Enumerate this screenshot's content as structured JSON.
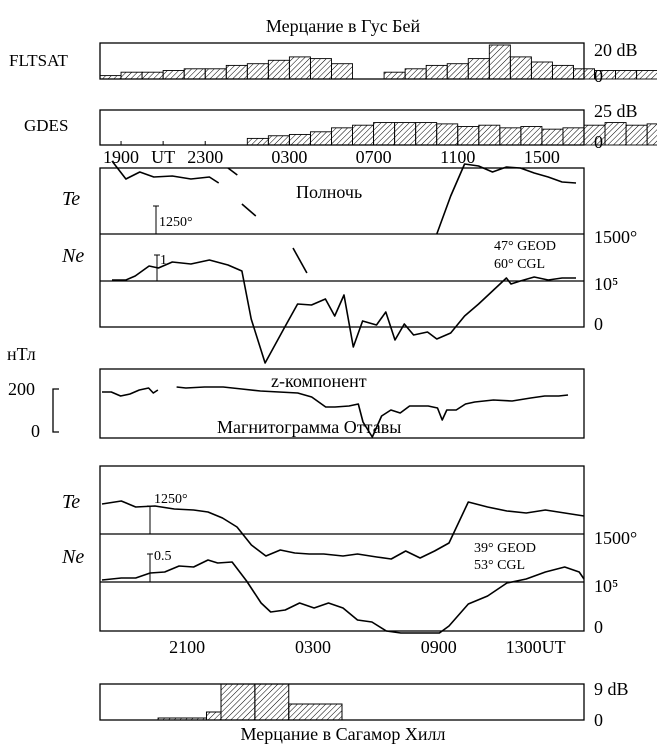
{
  "chart_data": [
    {
      "id": "goose_bay_scint",
      "type": "bar",
      "title": "Мерцание в Гус Бей",
      "rows": [
        {
          "label": "FLTSAT",
          "scale_top": "20 dB",
          "scale_zero": "0",
          "ymax": 20,
          "bins": [
            {
              "from": 36,
              "to": 38,
              "v": 2
            },
            {
              "from": 38,
              "to": 40,
              "v": 4
            },
            {
              "from": 40,
              "to": 42,
              "v": 4
            },
            {
              "from": 42,
              "to": 44,
              "v": 5
            },
            {
              "from": 44,
              "to": 46,
              "v": 6
            },
            {
              "from": 46,
              "to": 48,
              "v": 6
            },
            {
              "from": 48,
              "to": 50,
              "v": 8
            },
            {
              "from": 50,
              "to": 52,
              "v": 9
            },
            {
              "from": 52,
              "to": 54,
              "v": 11
            },
            {
              "from": 54,
              "to": 56,
              "v": 13
            },
            {
              "from": 56,
              "to": 58,
              "v": 12
            },
            {
              "from": 58,
              "to": 60,
              "v": 9
            },
            {
              "from": 63,
              "to": 65,
              "v": 4
            },
            {
              "from": 65,
              "to": 67,
              "v": 6
            },
            {
              "from": 67,
              "to": 69,
              "v": 8
            },
            {
              "from": 69,
              "to": 71,
              "v": 9
            },
            {
              "from": 71,
              "to": 73,
              "v": 12
            },
            {
              "from": 73,
              "to": 75,
              "v": 20
            },
            {
              "from": 75,
              "to": 77,
              "v": 13
            },
            {
              "from": 77,
              "to": 79,
              "v": 10
            },
            {
              "from": 79,
              "to": 81,
              "v": 8
            },
            {
              "from": 81,
              "to": 83,
              "v": 6
            },
            {
              "from": 83,
              "to": 85,
              "v": 5
            },
            {
              "from": 85,
              "to": 87,
              "v": 5
            },
            {
              "from": 87,
              "to": 89,
              "v": 5
            },
            {
              "from": 89,
              "to": 91,
              "v": 4
            }
          ]
        },
        {
          "label": "GDES",
          "scale_top": "25 dB",
          "scale_zero": "0",
          "ymax": 25,
          "bins": [
            {
              "from": 50,
              "to": 52,
              "v": 5
            },
            {
              "from": 52,
              "to": 54,
              "v": 7
            },
            {
              "from": 54,
              "to": 56,
              "v": 8
            },
            {
              "from": 56,
              "to": 58,
              "v": 10
            },
            {
              "from": 58,
              "to": 60,
              "v": 13
            },
            {
              "from": 60,
              "to": 62,
              "v": 15
            },
            {
              "from": 62,
              "to": 64,
              "v": 17
            },
            {
              "from": 64,
              "to": 66,
              "v": 17
            },
            {
              "from": 66,
              "to": 68,
              "v": 17
            },
            {
              "from": 68,
              "to": 70,
              "v": 16
            },
            {
              "from": 70,
              "to": 72,
              "v": 14
            },
            {
              "from": 72,
              "to": 74,
              "v": 15
            },
            {
              "from": 74,
              "to": 76,
              "v": 13
            },
            {
              "from": 76,
              "to": 78,
              "v": 14
            },
            {
              "from": 78,
              "to": 80,
              "v": 12
            },
            {
              "from": 80,
              "to": 82,
              "v": 13
            },
            {
              "from": 82,
              "to": 84,
              "v": 15
            },
            {
              "from": 84,
              "to": 86,
              "v": 17
            },
            {
              "from": 86,
              "to": 88,
              "v": 15
            },
            {
              "from": 88,
              "to": 90,
              "v": 16
            },
            {
              "from": 90,
              "to": 92,
              "v": 14
            },
            {
              "from": 92,
              "to": 94,
              "v": 13
            },
            {
              "from": 94,
              "to": 96,
              "v": 11
            },
            {
              "from": 96,
              "to": 98,
              "v": 10
            },
            {
              "from": 98,
              "to": 100,
              "v": 9
            },
            {
              "from": 100,
              "to": 102,
              "v": 10
            },
            {
              "from": 102,
              "to": 104,
              "v": 8
            },
            {
              "from": 104,
              "to": 106,
              "v": 6
            },
            {
              "from": 106,
              "to": 108,
              "v": 5
            },
            {
              "from": 108,
              "to": 110,
              "v": 3
            }
          ]
        }
      ],
      "time_ticks": [
        {
          "hour": 19,
          "label": "1900"
        },
        {
          "hour": 21,
          "label": "UT"
        },
        {
          "hour": 23,
          "label": "2300"
        },
        {
          "hour": 27,
          "label": "0300"
        },
        {
          "hour": 31,
          "label": "0700"
        },
        {
          "hour": 35,
          "label": "1100"
        },
        {
          "hour": 39,
          "label": "1500"
        }
      ]
    },
    {
      "id": "goose_bay_profiles",
      "type": "line",
      "annotation": "Полночь",
      "site": [
        "47° GEOD",
        "60° CGL"
      ],
      "te": {
        "label": "Te",
        "scale_label": "1250°",
        "base_label": "1500°",
        "segments": [
          [
            [
              0.0,
              73
            ],
            [
              0.03,
              55
            ],
            [
              0.06,
              62
            ],
            [
              0.09,
              57
            ],
            [
              0.13,
              58
            ],
            [
              0.17,
              55
            ],
            [
              0.21,
              57
            ],
            [
              0.23,
              51
            ]
          ],
          [
            [
              0.25,
              66
            ],
            [
              0.27,
              59
            ]
          ],
          [
            [
              0.28,
              30
            ],
            [
              0.31,
              18
            ]
          ],
          [
            [
              0.39,
              -14
            ],
            [
              0.42,
              -39
            ]
          ],
          [
            [
              0.7,
              0
            ],
            [
              0.73,
              38
            ],
            [
              0.76,
              70
            ],
            [
              0.79,
              68
            ],
            [
              0.82,
              62
            ],
            [
              0.85,
              67
            ],
            [
              0.88,
              66
            ],
            [
              0.91,
              61
            ],
            [
              0.94,
              57
            ],
            [
              0.97,
              52
            ],
            [
              1.0,
              51
            ]
          ]
        ]
      },
      "ne": {
        "label": "Ne",
        "scale_label": "1",
        "base_label": "10⁵",
        "zero_label": "0",
        "points": [
          [
            0.0,
            1
          ],
          [
            0.03,
            1
          ],
          [
            0.05,
            5
          ],
          [
            0.08,
            15
          ],
          [
            0.1,
            13
          ],
          [
            0.13,
            19
          ],
          [
            0.17,
            17
          ],
          [
            0.21,
            21
          ],
          [
            0.25,
            16
          ],
          [
            0.28,
            10
          ],
          [
            0.3,
            -38
          ],
          [
            0.33,
            -82
          ],
          [
            0.37,
            -48
          ],
          [
            0.4,
            -23
          ],
          [
            0.43,
            -24
          ],
          [
            0.46,
            -18
          ],
          [
            0.48,
            -35
          ],
          [
            0.5,
            -14
          ],
          [
            0.52,
            -66
          ],
          [
            0.54,
            -40
          ],
          [
            0.57,
            -44
          ],
          [
            0.59,
            -31
          ],
          [
            0.61,
            -59
          ],
          [
            0.63,
            -43
          ],
          [
            0.65,
            -54
          ],
          [
            0.68,
            -51
          ],
          [
            0.7,
            -58
          ],
          [
            0.73,
            -52
          ],
          [
            0.76,
            -35
          ],
          [
            0.79,
            -23
          ],
          [
            0.82,
            -10
          ],
          [
            0.85,
            3
          ],
          [
            0.86,
            -3
          ],
          [
            0.88,
            0
          ],
          [
            0.91,
            4
          ],
          [
            0.94,
            1
          ],
          [
            0.97,
            3
          ],
          [
            1.0,
            3
          ]
        ]
      }
    },
    {
      "id": "ottawa_magnetogram",
      "type": "line",
      "unit_label": "нТл",
      "title": "z-компонент",
      "caption": "Магнитограмма Оттавы",
      "scale_top": "200",
      "scale_zero": "0",
      "segments": [
        [
          [
            0.0,
            0
          ],
          [
            0.02,
            0
          ],
          [
            0.04,
            -4
          ],
          [
            0.06,
            -2
          ],
          [
            0.08,
            2
          ],
          [
            0.1,
            4
          ],
          [
            0.11,
            -1
          ],
          [
            0.12,
            2
          ]
        ],
        [
          [
            0.16,
            5
          ],
          [
            0.18,
            4
          ],
          [
            0.22,
            5
          ],
          [
            0.26,
            5
          ],
          [
            0.3,
            3
          ],
          [
            0.34,
            1
          ],
          [
            0.38,
            0
          ],
          [
            0.42,
            -1
          ],
          [
            0.45,
            -5
          ],
          [
            0.48,
            -15
          ],
          [
            0.5,
            -15
          ],
          [
            0.53,
            -14
          ],
          [
            0.55,
            -12
          ],
          [
            0.56,
            -30
          ],
          [
            0.58,
            -45
          ],
          [
            0.6,
            -24
          ],
          [
            0.62,
            -18
          ],
          [
            0.64,
            -21
          ],
          [
            0.66,
            -14
          ],
          [
            0.7,
            -14
          ],
          [
            0.72,
            -16
          ],
          [
            0.73,
            -28
          ],
          [
            0.74,
            -18
          ],
          [
            0.76,
            -18
          ],
          [
            0.78,
            -12
          ],
          [
            0.8,
            -10
          ],
          [
            0.84,
            -8
          ],
          [
            0.88,
            -9
          ],
          [
            0.92,
            -6
          ],
          [
            0.95,
            -4
          ],
          [
            0.98,
            -4
          ],
          [
            1.0,
            -3
          ]
        ]
      ]
    },
    {
      "id": "sagamore_profiles",
      "type": "line",
      "site": [
        "39° GEOD",
        "53° CGL"
      ],
      "time_ticks": [
        {
          "frac": 0.18,
          "label": "2100"
        },
        {
          "frac": 0.44,
          "label": "0300"
        },
        {
          "frac": 0.7,
          "label": "0900"
        },
        {
          "frac": 0.9,
          "label": "1300UT"
        }
      ],
      "te": {
        "label": "Te",
        "scale_label": "1250°",
        "base_label": "1500°",
        "points": [
          [
            0.0,
            30
          ],
          [
            0.04,
            33
          ],
          [
            0.07,
            27
          ],
          [
            0.11,
            28
          ],
          [
            0.15,
            25
          ],
          [
            0.19,
            24
          ],
          [
            0.22,
            22
          ],
          [
            0.25,
            16
          ],
          [
            0.28,
            7
          ],
          [
            0.31,
            -11
          ],
          [
            0.34,
            -22
          ],
          [
            0.37,
            -16
          ],
          [
            0.4,
            -19
          ],
          [
            0.43,
            -20
          ],
          [
            0.46,
            -20
          ],
          [
            0.5,
            -22
          ],
          [
            0.53,
            -20
          ],
          [
            0.57,
            -23
          ],
          [
            0.6,
            -25
          ],
          [
            0.63,
            -17
          ],
          [
            0.66,
            -24
          ],
          [
            0.69,
            -17
          ],
          [
            0.72,
            -9
          ],
          [
            0.76,
            32
          ],
          [
            0.8,
            27
          ],
          [
            0.84,
            23
          ],
          [
            0.88,
            21
          ],
          [
            0.92,
            24
          ],
          [
            0.96,
            21
          ],
          [
            1.0,
            18
          ]
        ]
      },
      "ne": {
        "label": "Ne",
        "scale_label": "0.5",
        "base_label": "10⁵",
        "zero_label": "0",
        "points": [
          [
            0.0,
            2
          ],
          [
            0.04,
            4
          ],
          [
            0.07,
            4
          ],
          [
            0.1,
            9
          ],
          [
            0.13,
            10
          ],
          [
            0.16,
            16
          ],
          [
            0.19,
            15
          ],
          [
            0.22,
            22
          ],
          [
            0.24,
            19
          ],
          [
            0.27,
            20
          ],
          [
            0.3,
            1
          ],
          [
            0.33,
            -21
          ],
          [
            0.35,
            -30
          ],
          [
            0.38,
            -28
          ],
          [
            0.41,
            -21
          ],
          [
            0.44,
            -26
          ],
          [
            0.47,
            -21
          ],
          [
            0.5,
            -26
          ],
          [
            0.53,
            -38
          ],
          [
            0.56,
            -40
          ],
          [
            0.59,
            -49
          ],
          [
            0.62,
            -51
          ],
          [
            0.65,
            -51
          ],
          [
            0.68,
            -51
          ],
          [
            0.7,
            -51
          ],
          [
            0.72,
            -44
          ],
          [
            0.76,
            -22
          ],
          [
            0.8,
            -14
          ],
          [
            0.84,
            -1
          ],
          [
            0.88,
            3
          ],
          [
            0.92,
            10
          ],
          [
            0.96,
            15
          ],
          [
            0.99,
            10
          ],
          [
            1.0,
            3
          ]
        ]
      }
    },
    {
      "id": "sagamore_scint",
      "type": "bar",
      "title": "Мерцание в Сагамор Хилл",
      "scale_top": "9 dB",
      "scale_zero": "0",
      "ymax": 9,
      "bins": [
        {
          "from": 0.12,
          "to": 0.22,
          "v": 0.5
        },
        {
          "from": 0.22,
          "to": 0.25,
          "v": 2
        },
        {
          "from": 0.25,
          "to": 0.32,
          "v": 9
        },
        {
          "from": 0.32,
          "to": 0.39,
          "v": 9
        },
        {
          "from": 0.39,
          "to": 0.5,
          "v": 4
        }
      ]
    }
  ]
}
